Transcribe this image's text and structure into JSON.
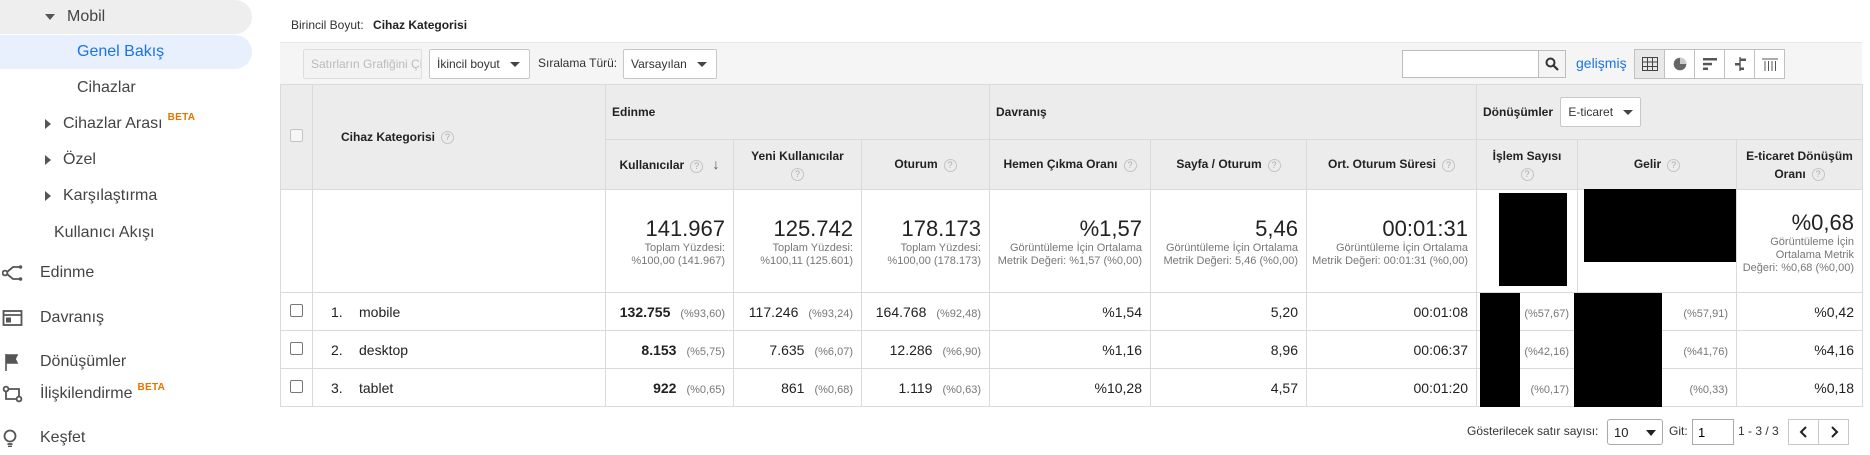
{
  "sidebar": {
    "items": [
      {
        "label": "Mobil"
      },
      {
        "label": "Genel Bakış"
      },
      {
        "label": "Cihazlar"
      },
      {
        "label": "Cihazlar Arası",
        "badge": "BETA"
      },
      {
        "label": "Özel"
      },
      {
        "label": "Karşılaştırma"
      },
      {
        "label": "Kullanıcı Akışı"
      }
    ],
    "sections": [
      {
        "label": "Edinme",
        "icon": "acquisition-icon"
      },
      {
        "label": "Davranış",
        "icon": "behavior-icon"
      },
      {
        "label": "Dönüşümler",
        "icon": "flag-icon"
      },
      {
        "label": "İlişkilendirme",
        "badge": "BETA",
        "icon": "attribution-icon"
      },
      {
        "label": "Keşfet",
        "icon": "lightbulb-icon"
      }
    ]
  },
  "dimension": {
    "prefix": "Birincil Boyut:",
    "value": "Cihaz Kategorisi"
  },
  "toolbar": {
    "plot_rows": "Satırların Grafiğini Çiz",
    "secondary_dim": "İkincil boyut",
    "sort_label": "Sıralama Türü:",
    "sort_value": "Varsayılan",
    "search_placeholder": "",
    "advanced": "gelişmiş"
  },
  "groups": {
    "acquisition": "Edinme",
    "behavior": "Davranış",
    "conversions": "Dönüşümler",
    "conversions_select": "E-ticaret"
  },
  "columns": {
    "dimension": "Cihaz Kategorisi",
    "users": "Kullanıcılar",
    "new_users": "Yeni Kullanıcılar",
    "sessions": "Oturum",
    "bounce": "Hemen Çıkma Oranı",
    "pages": "Sayfa / Oturum",
    "duration": "Ort. Oturum Süresi",
    "transactions": "İşlem Sayısı",
    "revenue": "Gelir",
    "conv_rate": "E-ticaret Dönüşüm Oranı"
  },
  "totals": {
    "users": {
      "big": "141.967",
      "sub": "Toplam Yüzdesi: %100,00 (141.967)"
    },
    "new_users": {
      "big": "125.742",
      "sub": "Toplam Yüzdesi: %100,11 (125.601)"
    },
    "sessions": {
      "big": "178.173",
      "sub": "Toplam Yüzdesi: %100,00 (178.173)"
    },
    "bounce": {
      "big": "%1,57",
      "sub": "Görüntüleme İçin Ortalama Metrik Değeri: %1,57 (%0,00)"
    },
    "pages": {
      "big": "5,46",
      "sub": "Görüntüleme İçin Ortalama Metrik Değeri: 5,46 (%0,00)"
    },
    "duration": {
      "big": "00:01:31",
      "sub": "Görüntüleme İçin Ortalama Metrik Değeri: 00:01:31 (%0,00)"
    },
    "conv_rate": {
      "big": "%0,68",
      "sub": "Görüntüleme İçin Ortalama Metrik Değeri: %0,68 (%0,00)"
    }
  },
  "rows": [
    {
      "idx": "1.",
      "name": "mobile",
      "users": "132.755",
      "users_pct": "(%93,60)",
      "new_users": "117.246",
      "new_users_pct": "(%93,24)",
      "sessions": "164.768",
      "sessions_pct": "(%92,48)",
      "bounce": "%1,54",
      "pages": "5,20",
      "duration": "00:01:08",
      "transactions_pct": "(%57,67)",
      "revenue_pct": "(%57,91)",
      "conv_rate": "%0,42"
    },
    {
      "idx": "2.",
      "name": "desktop",
      "users": "8.153",
      "users_pct": "(%5,75)",
      "new_users": "7.635",
      "new_users_pct": "(%6,07)",
      "sessions": "12.286",
      "sessions_pct": "(%6,90)",
      "bounce": "%1,16",
      "pages": "8,96",
      "duration": "00:06:37",
      "transactions_pct": "(%42,16)",
      "revenue_pct": "(%41,76)",
      "conv_rate": "%4,16"
    },
    {
      "idx": "3.",
      "name": "tablet",
      "users": "922",
      "users_pct": "(%0,65)",
      "new_users": "861",
      "new_users_pct": "(%0,68)",
      "sessions": "1.119",
      "sessions_pct": "(%0,63)",
      "bounce": "%10,28",
      "pages": "4,57",
      "duration": "00:01:20",
      "transactions_pct": "(%0,17)",
      "revenue_pct": "(%0,33)",
      "conv_rate": "%0,18"
    }
  ],
  "pagination": {
    "rows_label": "Gösterilecek satır sayısı:",
    "rows_value": "10",
    "goto_label": "Git:",
    "goto_value": "1",
    "range": "1 - 3 / 3"
  }
}
